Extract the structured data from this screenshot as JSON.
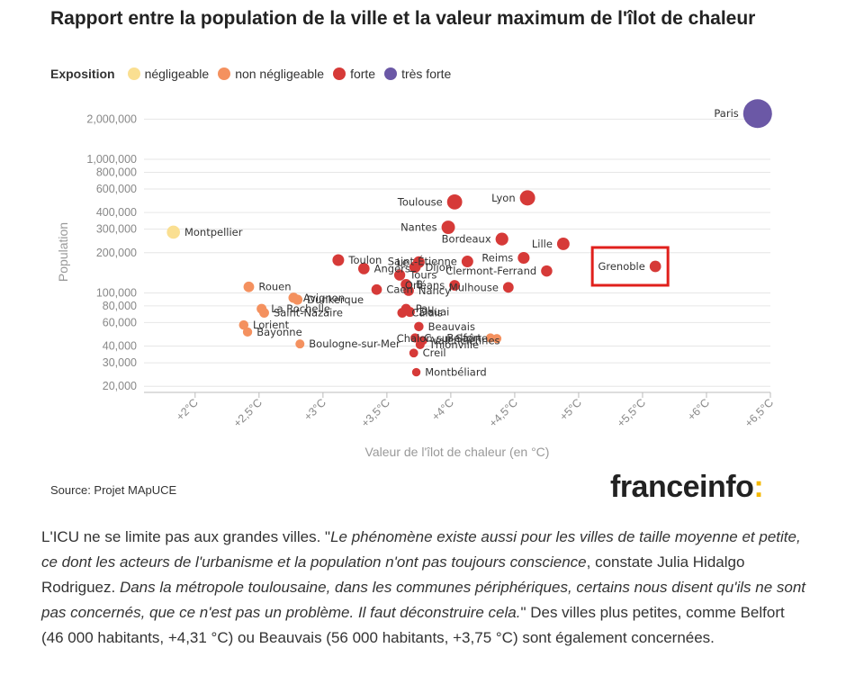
{
  "chart_data": {
    "type": "scatter",
    "title": "Rapport entre la population de la ville et la valeur maximum de l'îlot de chaleur",
    "xlabel": "Valeur de l'îlot de chaleur (en °C)",
    "ylabel": "Population",
    "x_scale": "linear",
    "y_scale": "log",
    "xlim": [
      1.6,
      6.5
    ],
    "ylim": [
      18000,
      2500000
    ],
    "x_ticks": [
      {
        "value": 2.0,
        "label": "+2°C"
      },
      {
        "value": 2.5,
        "label": "+2,5°C"
      },
      {
        "value": 3.0,
        "label": "+3°C"
      },
      {
        "value": 3.5,
        "label": "+3,5°C"
      },
      {
        "value": 4.0,
        "label": "+4°C"
      },
      {
        "value": 4.5,
        "label": "+4,5°C"
      },
      {
        "value": 5.0,
        "label": "+5°C"
      },
      {
        "value": 5.5,
        "label": "+5,5°C"
      },
      {
        "value": 6.0,
        "label": "+6°C"
      },
      {
        "value": 6.5,
        "label": "+6,5°C"
      }
    ],
    "y_ticks": [
      {
        "value": 20000,
        "label": "20,000"
      },
      {
        "value": 30000,
        "label": "30,000"
      },
      {
        "value": 40000,
        "label": "40,000"
      },
      {
        "value": 60000,
        "label": "60,000"
      },
      {
        "value": 80000,
        "label": "80,000"
      },
      {
        "value": 100000,
        "label": "100,000"
      },
      {
        "value": 200000,
        "label": "200,000"
      },
      {
        "value": 300000,
        "label": "300,000"
      },
      {
        "value": 400000,
        "label": "400,000"
      },
      {
        "value": 600000,
        "label": "600,000"
      },
      {
        "value": 800000,
        "label": "800,000"
      },
      {
        "value": 1000000,
        "label": "1,000,000"
      },
      {
        "value": 2000000,
        "label": "2,000,000"
      }
    ],
    "grid": true,
    "legend_title": "Exposition",
    "legend_position": "top-left",
    "categories": [
      {
        "key": "negligeable",
        "name": "négligeable",
        "color": "#fadf91"
      },
      {
        "key": "non_negligeable",
        "name": "non négligeable",
        "color": "#f4915f"
      },
      {
        "key": "forte",
        "name": "forte",
        "color": "#d63a38"
      },
      {
        "key": "tres_forte",
        "name": "très forte",
        "color": "#6b58a6"
      }
    ],
    "points": [
      {
        "name": "Paris",
        "x": 6.4,
        "y": 2200000,
        "cat": "tres_forte",
        "label": "Paris",
        "label_side": "left"
      },
      {
        "name": "Montpellier",
        "x": 1.83,
        "y": 285000,
        "cat": "negligeable",
        "label": "Montpellier",
        "label_side": "right"
      },
      {
        "name": "Toulouse",
        "x": 4.03,
        "y": 480000,
        "cat": "forte",
        "label": "Toulouse",
        "label_side": "left"
      },
      {
        "name": "Lyon",
        "x": 4.6,
        "y": 515000,
        "cat": "forte",
        "label": "Lyon",
        "label_side": "left"
      },
      {
        "name": "Nantes",
        "x": 3.98,
        "y": 310000,
        "cat": "forte",
        "label": "Nantes",
        "label_side": "left"
      },
      {
        "name": "Bordeaux",
        "x": 4.4,
        "y": 253000,
        "cat": "forte",
        "label": "Bordeaux",
        "label_side": "left"
      },
      {
        "name": "Lille",
        "x": 4.88,
        "y": 233000,
        "cat": "forte",
        "label": "Lille",
        "label_side": "left"
      },
      {
        "name": "Reims",
        "x": 4.57,
        "y": 183000,
        "cat": "forte",
        "label": "Reims",
        "label_side": "left"
      },
      {
        "name": "Saint-Étienne",
        "x": 4.13,
        "y": 172000,
        "cat": "forte",
        "label": "Saint-Étienne",
        "label_side": "left"
      },
      {
        "name": "Le Havre",
        "x": 3.75,
        "y": 170000,
        "cat": "forte",
        "label": "Le",
        "label_side": "left"
      },
      {
        "name": "Toulon",
        "x": 3.12,
        "y": 176000,
        "cat": "forte",
        "label": "Toulon",
        "label_side": "right"
      },
      {
        "name": "Angers",
        "x": 3.32,
        "y": 152000,
        "cat": "forte",
        "label": "Angers",
        "label_side": "right"
      },
      {
        "name": "Dijon",
        "x": 3.72,
        "y": 156000,
        "cat": "forte",
        "label": "Dijon",
        "label_side": "right"
      },
      {
        "name": "Clermont-Ferrand",
        "x": 4.75,
        "y": 146000,
        "cat": "forte",
        "label": "Clermont-Ferrand",
        "label_side": "left"
      },
      {
        "name": "Grenoble",
        "x": 5.6,
        "y": 158000,
        "cat": "forte",
        "label": "Grenoble",
        "label_side": "left"
      },
      {
        "name": "Tours",
        "x": 3.6,
        "y": 136000,
        "cat": "forte",
        "label": "Tours",
        "label_side": "right"
      },
      {
        "name": "Brest",
        "x": 3.65,
        "y": 116000,
        "cat": "forte",
        "label": "B",
        "label_side": "right"
      },
      {
        "name": "Orléans",
        "x": 4.03,
        "y": 114000,
        "cat": "forte",
        "label": "Orléans",
        "label_side": "left"
      },
      {
        "name": "Caen",
        "x": 3.42,
        "y": 106000,
        "cat": "forte",
        "label": "Caen",
        "label_side": "right"
      },
      {
        "name": "Nancy",
        "x": 3.67,
        "y": 104000,
        "cat": "forte",
        "label": "Nancy",
        "label_side": "right"
      },
      {
        "name": "Mulhouse",
        "x": 4.45,
        "y": 110000,
        "cat": "forte",
        "label": "Mulhouse",
        "label_side": "left"
      },
      {
        "name": "Rouen",
        "x": 2.42,
        "y": 111000,
        "cat": "non_negligeable",
        "label": "Rouen",
        "label_side": "right"
      },
      {
        "name": "Avignon",
        "x": 2.77,
        "y": 92000,
        "cat": "non_negligeable",
        "label": "Avignon",
        "label_side": "right"
      },
      {
        "name": "Dunkerque",
        "x": 2.8,
        "y": 89000,
        "cat": "non_negligeable",
        "label": "Dunkerque",
        "label_side": "right"
      },
      {
        "name": "La Rochelle",
        "x": 2.52,
        "y": 76000,
        "cat": "non_negligeable",
        "label": "La Rochelle",
        "label_side": "right"
      },
      {
        "name": "Saint-Nazaire",
        "x": 2.54,
        "y": 71000,
        "cat": "non_negligeable",
        "label": "Saint-Nazaire",
        "label_side": "right"
      },
      {
        "name": "Pau",
        "x": 3.65,
        "y": 76000,
        "cat": "forte",
        "label": "Pau",
        "label_side": "right"
      },
      {
        "name": "Douai",
        "x": 3.68,
        "y": 72000,
        "cat": "forte",
        "label": "Douai",
        "label_side": "right"
      },
      {
        "name": "Calais",
        "x": 3.62,
        "y": 71000,
        "cat": "forte",
        "label": "Calais",
        "label_side": "right"
      },
      {
        "name": "Lorient",
        "x": 2.38,
        "y": 57500,
        "cat": "non_negligeable",
        "label": "Lorient",
        "label_side": "right"
      },
      {
        "name": "Bayonne",
        "x": 2.41,
        "y": 51000,
        "cat": "non_negligeable",
        "label": "Bayonne",
        "label_side": "right"
      },
      {
        "name": "Beauvais",
        "x": 3.75,
        "y": 56000,
        "cat": "forte",
        "label": "Beauvais",
        "label_side": "right"
      },
      {
        "name": "Belfort",
        "x": 4.31,
        "y": 46000,
        "cat": "non_negligeable",
        "label": "Belfort",
        "label_side": "left"
      },
      {
        "name": "Chalon-sur-Saône",
        "x": 4.36,
        "y": 45500,
        "cat": "non_negligeable",
        "label": "Chalon-sur-Saône",
        "label_side": "left"
      },
      {
        "name": "Colmar",
        "x": 3.72,
        "y": 46000,
        "cat": "forte",
        "label": "C",
        "label_side": "right"
      },
      {
        "name": "Valenciennes",
        "x": 3.78,
        "y": 44000,
        "cat": "forte",
        "label": "Valenciennes",
        "label_side": "right"
      },
      {
        "name": "Thionville",
        "x": 3.76,
        "y": 41000,
        "cat": "forte",
        "label": "Thionville",
        "label_side": "right"
      },
      {
        "name": "Boulogne-sur-Mer",
        "x": 2.82,
        "y": 41500,
        "cat": "non_negligeable",
        "label": "Boulogne-sur-Mer",
        "label_side": "right"
      },
      {
        "name": "Creil",
        "x": 3.71,
        "y": 35500,
        "cat": "forte",
        "label": "Creil",
        "label_side": "right"
      },
      {
        "name": "Montbéliard",
        "x": 3.73,
        "y": 25500,
        "cat": "forte",
        "label": "Montbéliard",
        "label_side": "right"
      }
    ]
  },
  "highlight": {
    "target": "Grenoble",
    "color": "#e0201c"
  },
  "source": "Source: Projet MApUCE",
  "brand": {
    "name": "franceinfo",
    "accent": ":",
    "accent_color": "#f5b800"
  },
  "article": {
    "p1": "L'ICU ne se limite pas aux grandes villes. \"",
    "quote1": "Le phénomène existe aussi pour les villes de taille moyenne et petite, ce dont les acteurs de l'urbanisme et la population n'ont pas toujours conscience",
    "p2": ", constate Julia Hidalgo Rodriguez. ",
    "quote2": "Dans la métropole toulousaine, dans les communes périphériques, certains nous disent qu'ils ne sont pas concernés, que ce n'est pas un problème. Il faut déconstruire cela.",
    "p3": "\" Des villes plus petites, comme Belfort (46 000 habitants, +4,31 °C) ou Beauvais (56 000 habitants, +3,75 °C) sont également concernées."
  }
}
